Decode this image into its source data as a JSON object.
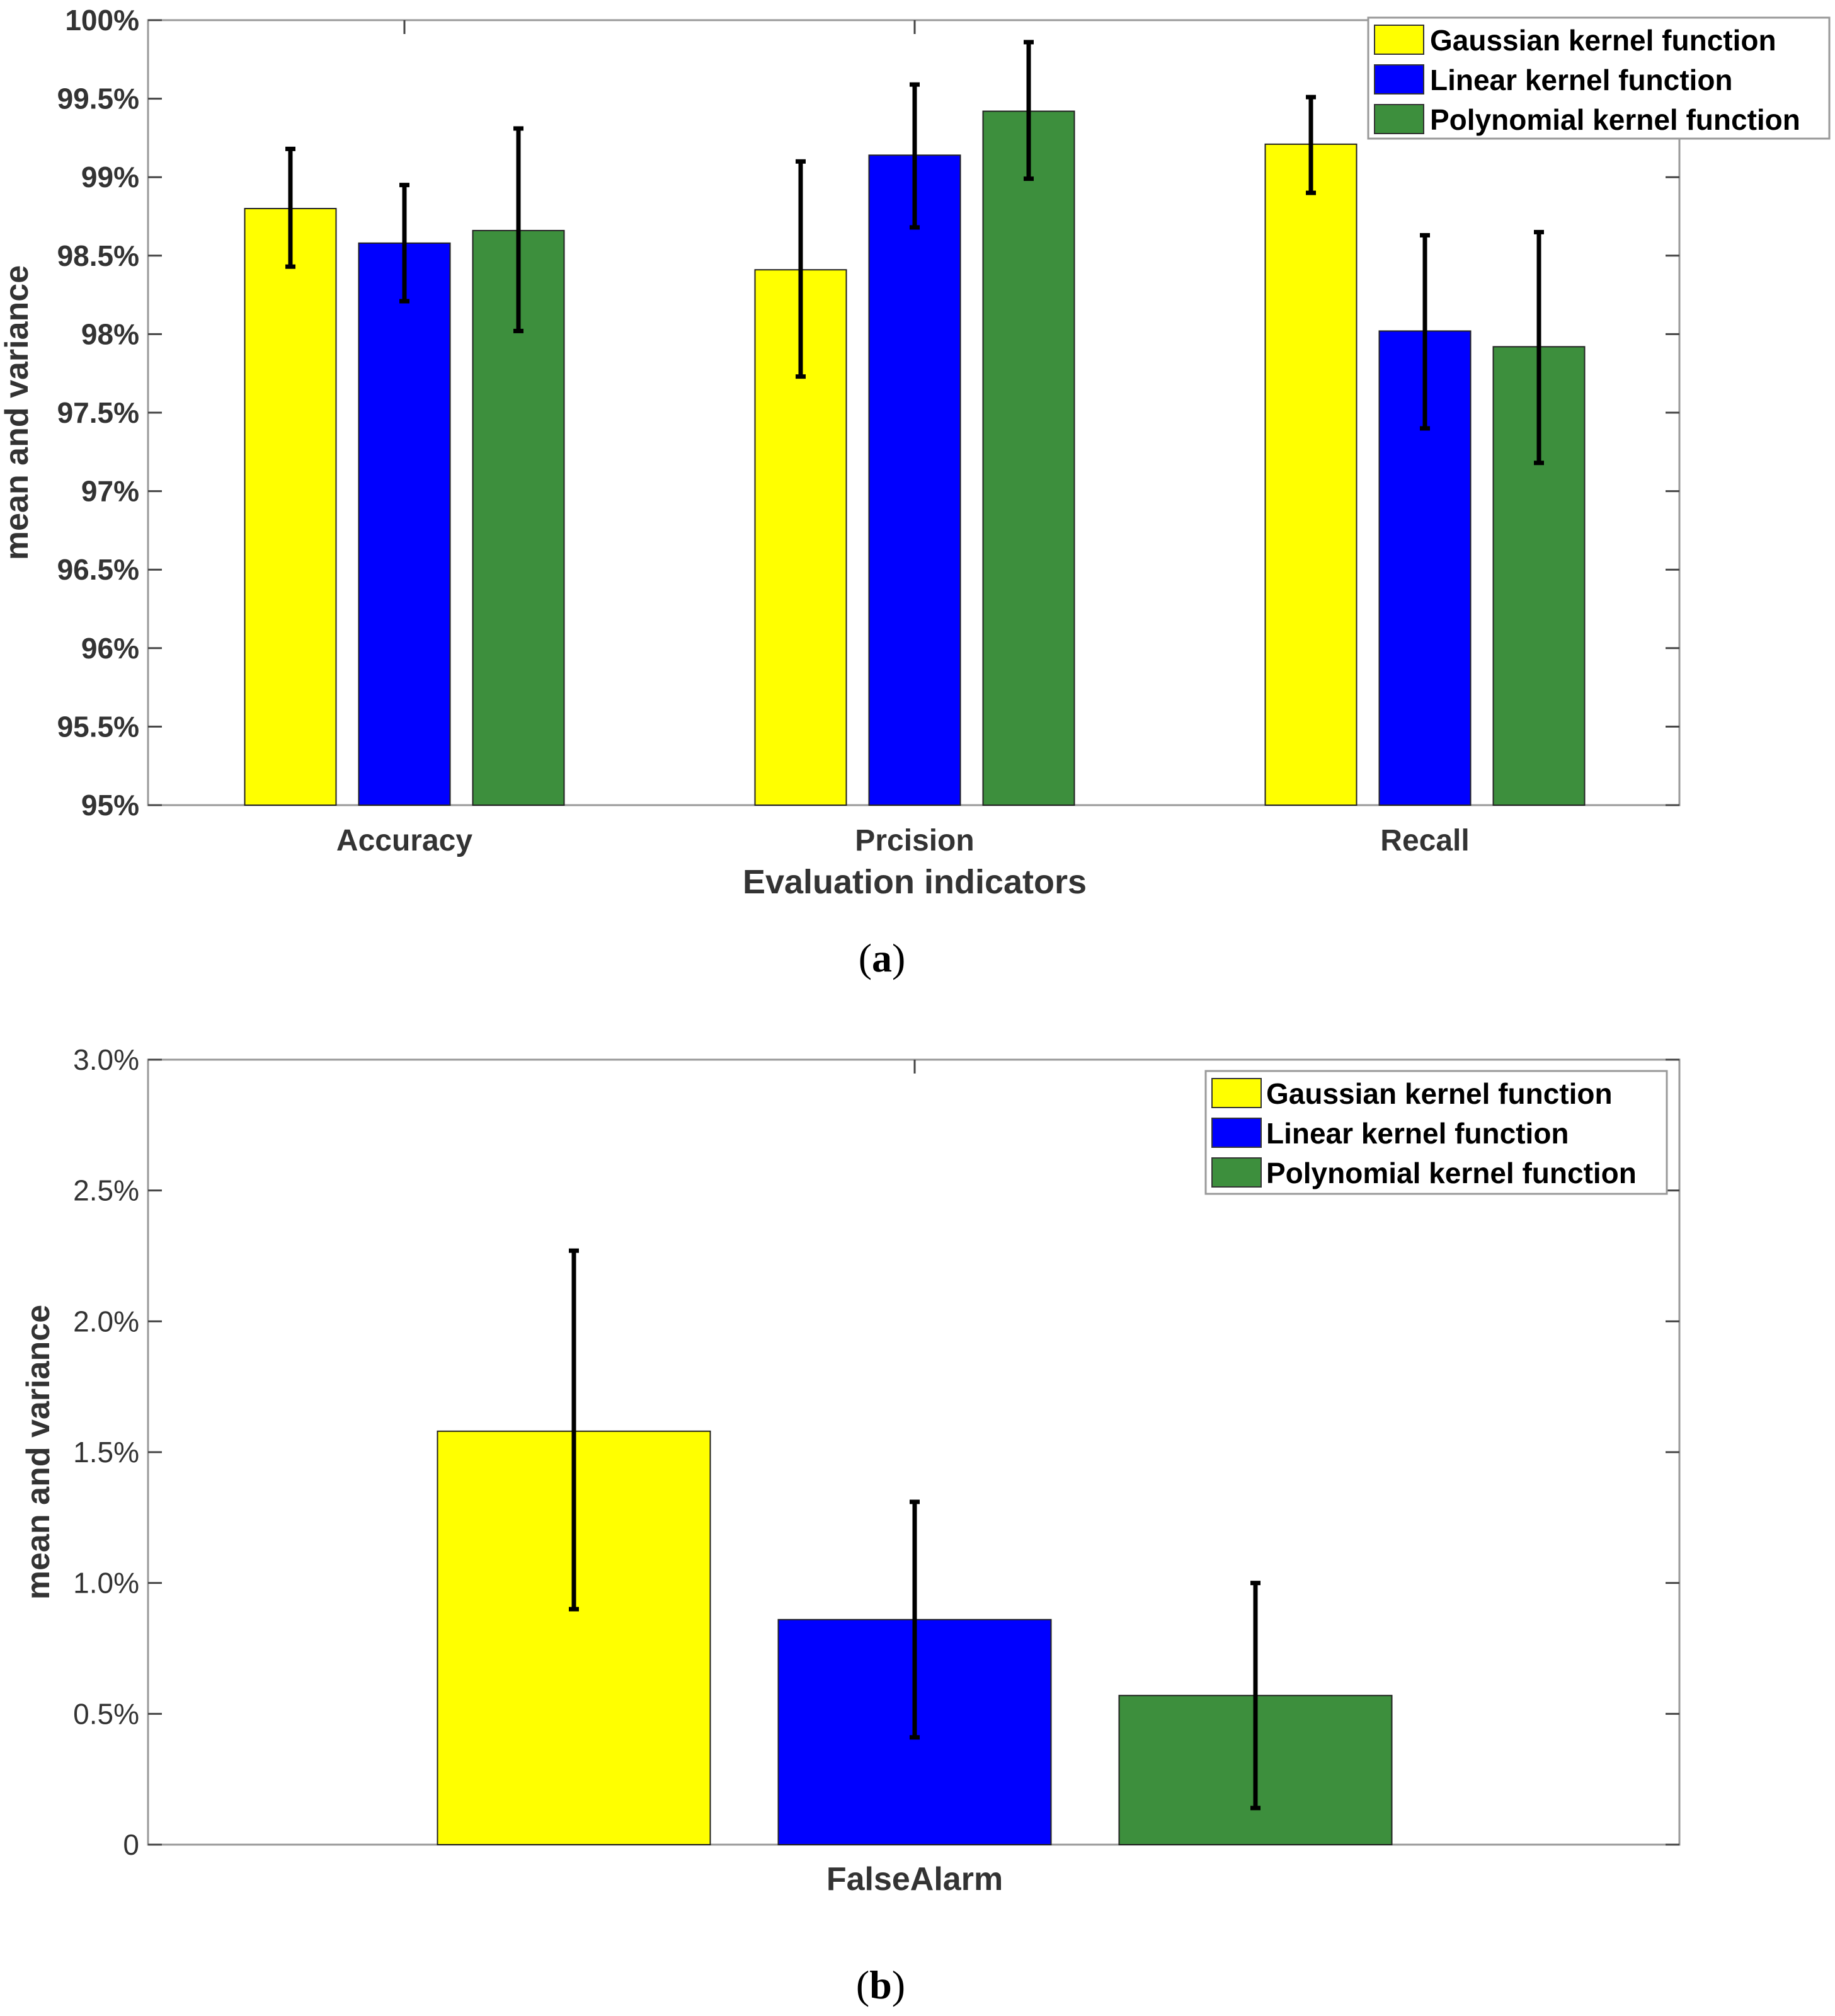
{
  "chart_data": [
    {
      "type": "bar",
      "caption_letter": "a",
      "categories": [
        "Accuracy",
        "Prcision",
        "Recall"
      ],
      "xlabel": "Evaluation indicators",
      "ylabel": "mean and variance",
      "ylim": [
        95,
        100
      ],
      "yticks": [
        95,
        95.5,
        96,
        96.5,
        97,
        97.5,
        98,
        98.5,
        99,
        99.5,
        100
      ],
      "ytick_labels": [
        "95%",
        "95.5%",
        "96%",
        "96.5%",
        "97%",
        "97.5%",
        "98%",
        "98.5%",
        "99%",
        "99.5%",
        "100%"
      ],
      "legend_position": "top-right",
      "series": [
        {
          "name": "Gaussian kernel function",
          "color": "#ffff00",
          "values": [
            98.8,
            98.41,
            99.21
          ],
          "err_low": [
            98.43,
            97.73,
            98.9
          ],
          "err_high": [
            99.18,
            99.1,
            99.51
          ]
        },
        {
          "name": "Linear kernel function",
          "color": "#0000ff",
          "values": [
            98.58,
            99.14,
            98.02
          ],
          "err_low": [
            98.21,
            98.68,
            97.4
          ],
          "err_high": [
            98.95,
            99.59,
            98.63
          ]
        },
        {
          "name": "Polynomial kernel function",
          "color": "#3d8f3d",
          "values": [
            98.66,
            99.42,
            97.92
          ],
          "err_low": [
            98.02,
            98.99,
            97.18
          ],
          "err_high": [
            99.31,
            99.86,
            98.65
          ]
        }
      ]
    },
    {
      "type": "bar",
      "caption_letter": "b",
      "categories": [
        "FalseAlarm"
      ],
      "xlabel": "",
      "ylabel": "mean and variance",
      "ylim": [
        0,
        3.0
      ],
      "yticks": [
        0,
        0.5,
        1.0,
        1.5,
        2.0,
        2.5,
        3.0
      ],
      "ytick_labels": [
        "0",
        "0.5%",
        "1.0%",
        "1.5%",
        "2.0%",
        "2.5%",
        "3.0%"
      ],
      "legend_position": "top-right",
      "series": [
        {
          "name": "Gaussian kernel function",
          "color": "#ffff00",
          "values": [
            1.58
          ],
          "err_low": [
            0.9
          ],
          "err_high": [
            2.27
          ]
        },
        {
          "name": "Linear kernel function",
          "color": "#0000ff",
          "values": [
            0.86
          ],
          "err_low": [
            0.41
          ],
          "err_high": [
            1.31
          ]
        },
        {
          "name": "Polynomial kernel function",
          "color": "#3d8f3d",
          "values": [
            0.57
          ],
          "err_low": [
            0.14
          ],
          "err_high": [
            1.0
          ]
        }
      ]
    }
  ]
}
